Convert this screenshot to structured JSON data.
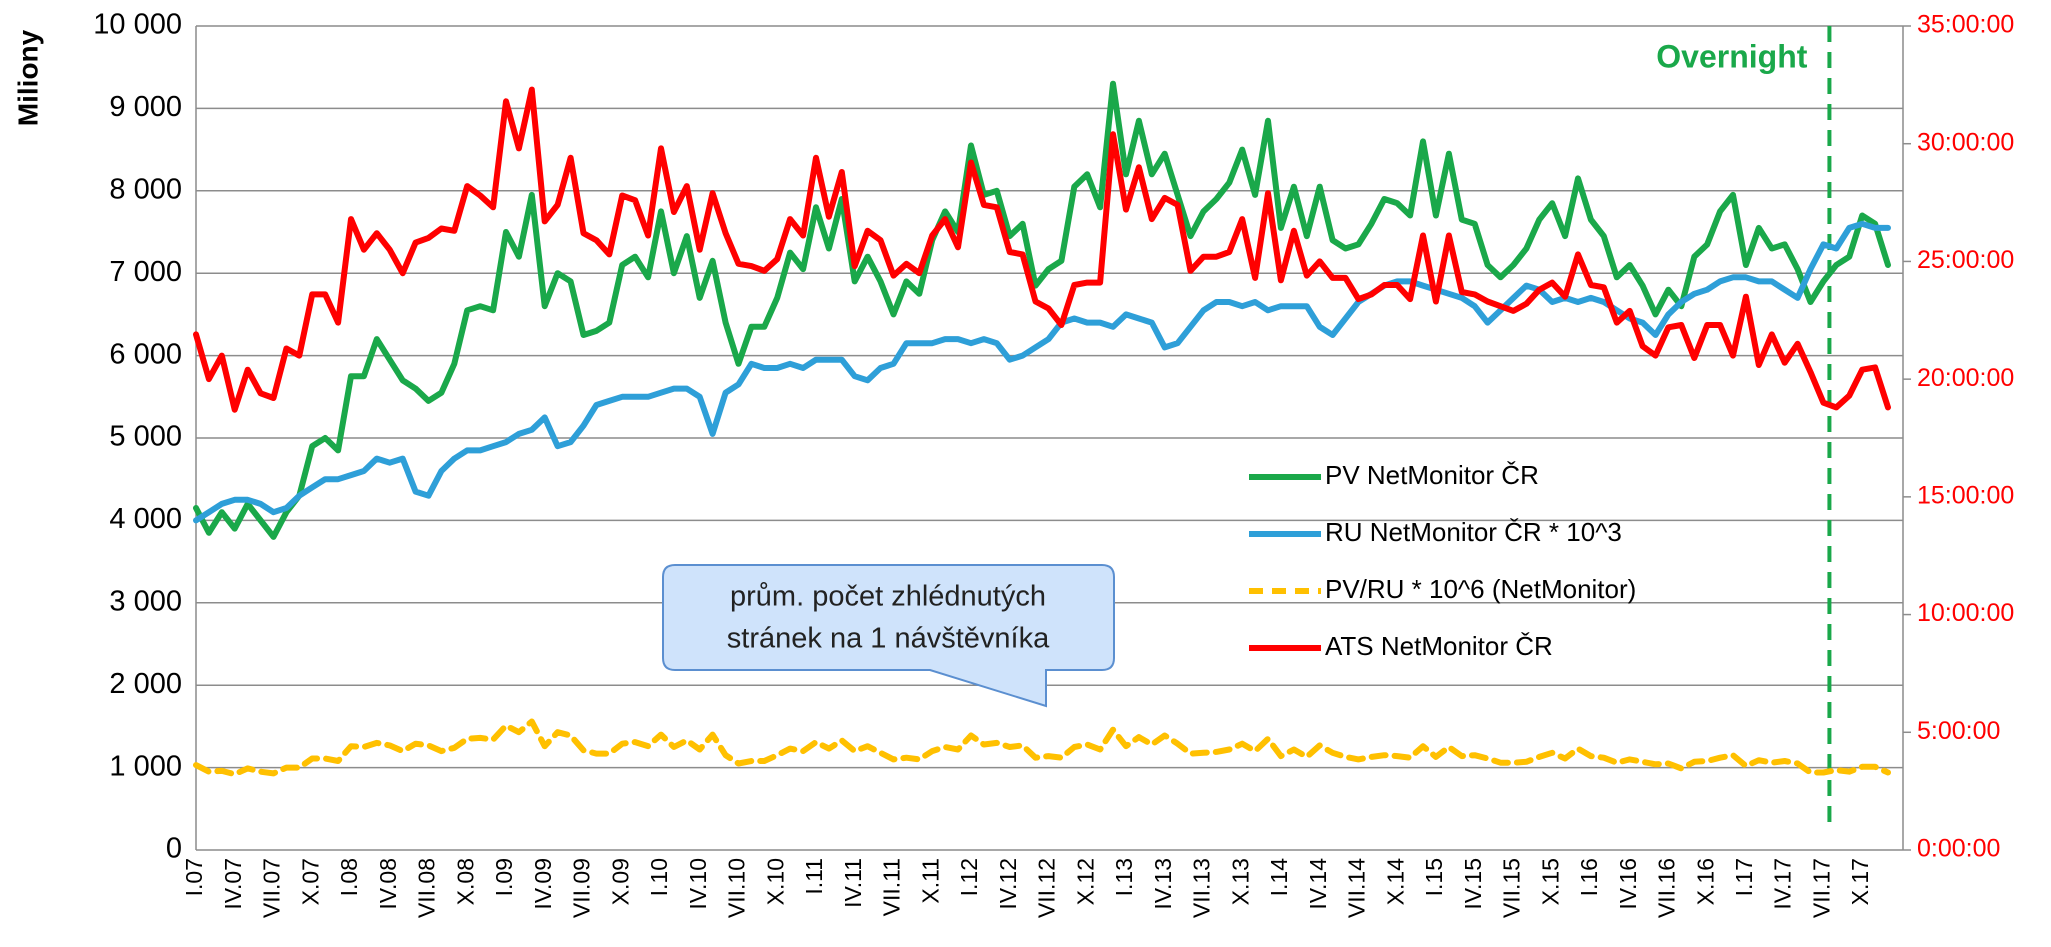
{
  "chart_data": {
    "type": "line",
    "y_label": "Miliony",
    "categories": [
      "I.07",
      null,
      null,
      "IV.07",
      null,
      null,
      "VII.07",
      null,
      null,
      "X.07",
      null,
      null,
      "I.08",
      null,
      null,
      "IV.08",
      null,
      null,
      "VII.08",
      null,
      null,
      "X.08",
      null,
      null,
      "I.09",
      null,
      null,
      "IV.09",
      null,
      null,
      "VII.09",
      null,
      null,
      "X.09",
      null,
      null,
      "I.10",
      null,
      null,
      "IV.10",
      null,
      null,
      "VII.10",
      null,
      null,
      "X.10",
      null,
      null,
      "I.11",
      null,
      null,
      "IV.11",
      null,
      null,
      "VII.11",
      null,
      null,
      "X.11",
      null,
      null,
      "I.12",
      null,
      null,
      "IV.12",
      null,
      null,
      "VII.12",
      null,
      null,
      "X.12",
      null,
      null,
      "I.13",
      null,
      null,
      "IV.13",
      null,
      null,
      "VII.13",
      null,
      null,
      "X.13",
      null,
      null,
      "I.14",
      null,
      null,
      "IV.14",
      null,
      null,
      "VII.14",
      null,
      null,
      "X.14",
      null,
      null,
      "I.15",
      null,
      null,
      "IV.15",
      null,
      null,
      "VII.15",
      null,
      null,
      "X.15",
      null,
      null,
      "I.16",
      null,
      null,
      "IV.16",
      null,
      null,
      "VII.16",
      null,
      null,
      "X.16",
      null,
      null,
      "I.17",
      null,
      null,
      "IV.17",
      null,
      null,
      "VII.17",
      null,
      null,
      "X.17",
      null,
      null
    ],
    "series": [
      {
        "name": "PV NetMonitor ČR",
        "color": "#1aa84a",
        "style": "solid",
        "values": [
          4150,
          3850,
          4100,
          3900,
          4200,
          4000,
          3800,
          4100,
          4300,
          4900,
          5000,
          4850,
          5750,
          5750,
          6200,
          5950,
          5700,
          5600,
          5450,
          5550,
          5900,
          6550,
          6600,
          6550,
          7500,
          7200,
          7950,
          6600,
          7000,
          6900,
          6250,
          6300,
          6400,
          7100,
          7200,
          6950,
          7750,
          7000,
          7450,
          6700,
          7150,
          6400,
          5900,
          6350,
          6350,
          6700,
          7250,
          7050,
          7800,
          7300,
          7900,
          6900,
          7200,
          6900,
          6500,
          6900,
          6750,
          7400,
          7750,
          7500,
          8550,
          7950,
          8000,
          7450,
          7600,
          6850,
          7050,
          7150,
          8050,
          8200,
          7800,
          9300,
          8200,
          8850,
          8200,
          8450,
          7950,
          7450,
          7750,
          7900,
          8100,
          8500,
          7950,
          8850,
          7550,
          8050,
          7450,
          8050,
          7400,
          7300,
          7350,
          7600,
          7900,
          7850,
          7700,
          8600,
          7700,
          8450,
          7650,
          7600,
          7100,
          6950,
          7100,
          7300,
          7650,
          7850,
          7450,
          8150,
          7650,
          7450,
          6950,
          7100,
          6850,
          6500,
          6800,
          6600,
          7200,
          7350,
          7750,
          7950,
          7100,
          7550,
          7300,
          7350,
          7050,
          6650,
          6900,
          7100,
          7200,
          7700,
          7600,
          7100
        ]
      },
      {
        "name": "RU NetMonitor ČR * 10^3",
        "color": "#2e9fd8",
        "style": "solid",
        "values": [
          4000,
          4100,
          4200,
          4250,
          4250,
          4200,
          4100,
          4150,
          4300,
          4400,
          4500,
          4500,
          4550,
          4600,
          4750,
          4700,
          4750,
          4350,
          4300,
          4600,
          4750,
          4850,
          4850,
          4900,
          4950,
          5050,
          5100,
          5250,
          4900,
          4950,
          5150,
          5400,
          5450,
          5500,
          5500,
          5500,
          5550,
          5600,
          5600,
          5500,
          5050,
          5550,
          5650,
          5900,
          5850,
          5850,
          5900,
          5850,
          5950,
          5950,
          5950,
          5750,
          5700,
          5850,
          5900,
          6150,
          6150,
          6150,
          6200,
          6200,
          6150,
          6200,
          6150,
          5950,
          6000,
          6100,
          6200,
          6400,
          6450,
          6400,
          6400,
          6350,
          6500,
          6450,
          6400,
          6100,
          6150,
          6350,
          6550,
          6650,
          6650,
          6600,
          6650,
          6550,
          6600,
          6600,
          6600,
          6350,
          6250,
          6450,
          6650,
          6750,
          6850,
          6900,
          6900,
          6850,
          6800,
          6750,
          6700,
          6600,
          6400,
          6550,
          6700,
          6850,
          6800,
          6650,
          6700,
          6650,
          6700,
          6650,
          6550,
          6450,
          6400,
          6250,
          6500,
          6650,
          6750,
          6800,
          6900,
          6950,
          6950,
          6900,
          6900,
          6800,
          6700,
          7050,
          7350,
          7300,
          7550,
          7600,
          7550,
          7550
        ]
      },
      {
        "name": "PV/RU * 10^6 (NetMonitor)",
        "color": "#ffc000",
        "style": "dashed",
        "values": [
          1030,
          950,
          960,
          920,
          990,
          950,
          930,
          1000,
          1000,
          1110,
          1110,
          1080,
          1260,
          1250,
          1300,
          1270,
          1200,
          1290,
          1270,
          1200,
          1240,
          1350,
          1360,
          1340,
          1510,
          1430,
          1560,
          1260,
          1430,
          1390,
          1210,
          1170,
          1170,
          1290,
          1310,
          1260,
          1400,
          1250,
          1330,
          1220,
          1400,
          1150,
          1050,
          1080,
          1080,
          1150,
          1230,
          1200,
          1310,
          1230,
          1330,
          1200,
          1260,
          1180,
          1100,
          1120,
          1100,
          1200,
          1250,
          1220,
          1390,
          1280,
          1300,
          1250,
          1270,
          1120,
          1140,
          1120,
          1250,
          1280,
          1220,
          1460,
          1260,
          1370,
          1280,
          1390,
          1290,
          1170,
          1180,
          1190,
          1220,
          1290,
          1200,
          1350,
          1140,
          1220,
          1130,
          1270,
          1180,
          1130,
          1100,
          1130,
          1150,
          1140,
          1120,
          1260,
          1130,
          1250,
          1140,
          1150,
          1110,
          1060,
          1060,
          1070,
          1130,
          1180,
          1110,
          1230,
          1140,
          1120,
          1060,
          1100,
          1070,
          1040,
          1050,
          990,
          1070,
          1080,
          1120,
          1150,
          1020,
          1090,
          1060,
          1080,
          1050,
          940,
          940,
          970,
          950,
          1010,
          1010,
          940
        ]
      },
      {
        "name": "ATS NetMonitor ČR",
        "color": "#ff0000",
        "style": "solid",
        "axis": "y2",
        "values": [
          21.9,
          20.0,
          21.0,
          18.7,
          20.4,
          19.4,
          19.2,
          21.3,
          21.0,
          23.6,
          23.6,
          22.4,
          26.8,
          25.5,
          26.2,
          25.5,
          24.5,
          25.8,
          26.0,
          26.4,
          26.3,
          28.2,
          27.8,
          27.3,
          31.8,
          29.8,
          32.3,
          26.7,
          27.4,
          29.4,
          26.2,
          25.9,
          25.3,
          27.8,
          27.6,
          26.1,
          29.8,
          27.1,
          28.2,
          25.5,
          27.9,
          26.2,
          24.9,
          24.8,
          24.6,
          25.1,
          26.8,
          26.1,
          29.4,
          26.9,
          28.8,
          24.8,
          26.3,
          25.9,
          24.4,
          24.9,
          24.5,
          26.1,
          26.8,
          25.6,
          29.2,
          27.4,
          27.3,
          25.4,
          25.3,
          23.3,
          23.0,
          22.3,
          24.0,
          24.1,
          24.1,
          30.4,
          27.2,
          29.0,
          26.8,
          27.7,
          27.4,
          24.6,
          25.2,
          25.2,
          25.4,
          26.8,
          24.3,
          27.9,
          24.2,
          26.3,
          24.4,
          25.0,
          24.3,
          24.3,
          23.4,
          23.6,
          24.0,
          24.0,
          23.4,
          26.1,
          23.3,
          26.1,
          23.7,
          23.6,
          23.3,
          23.1,
          22.9,
          23.2,
          23.8,
          24.1,
          23.5,
          25.3,
          24.0,
          23.9,
          22.4,
          22.9,
          21.4,
          21.0,
          22.2,
          22.3,
          20.9,
          22.3,
          22.3,
          21.0,
          23.5,
          20.6,
          21.9,
          20.7,
          21.5,
          20.3,
          19.0,
          18.8,
          19.3,
          20.4,
          20.5,
          18.8
        ]
      }
    ],
    "ylim": [
      0,
      10000
    ],
    "yticks": [
      0,
      {
        "value": 1000,
        "label": "1 000"
      },
      {
        "value": 2000,
        "label": "2 000"
      },
      {
        "value": 3000,
        "label": "3 000"
      },
      {
        "value": 4000,
        "label": "4 000"
      },
      {
        "value": 5000,
        "label": "5 000"
      },
      {
        "value": 6000,
        "label": "6 000"
      },
      {
        "value": 7000,
        "label": "7 000"
      },
      {
        "value": 8000,
        "label": "8 000"
      },
      {
        "value": 9000,
        "label": "9 000"
      },
      {
        "value": 10000,
        "label": "10 000"
      }
    ],
    "y2lim": [
      0,
      35
    ],
    "y2ticks": [
      {
        "value": 0,
        "label": "0:00:00"
      },
      {
        "value": 5,
        "label": "5:00:00"
      },
      {
        "value": 10,
        "label": "10:00:00"
      },
      {
        "value": 15,
        "label": "15:00:00"
      },
      {
        "value": 20,
        "label": "20:00:00"
      },
      {
        "value": 25,
        "label": "25:00:00"
      },
      {
        "value": 30,
        "label": "30:00:00"
      },
      {
        "value": 35,
        "label": "35:00:00"
      }
    ],
    "y2_color": "#ff0000",
    "grid": true,
    "legend": "right",
    "marker_line": {
      "text": "Overnight",
      "category": "VII.17",
      "color": "#1aa84a"
    },
    "callout": [
      "prům. počet zhlédnutých",
      "stránek na 1 návštěvníka"
    ]
  }
}
